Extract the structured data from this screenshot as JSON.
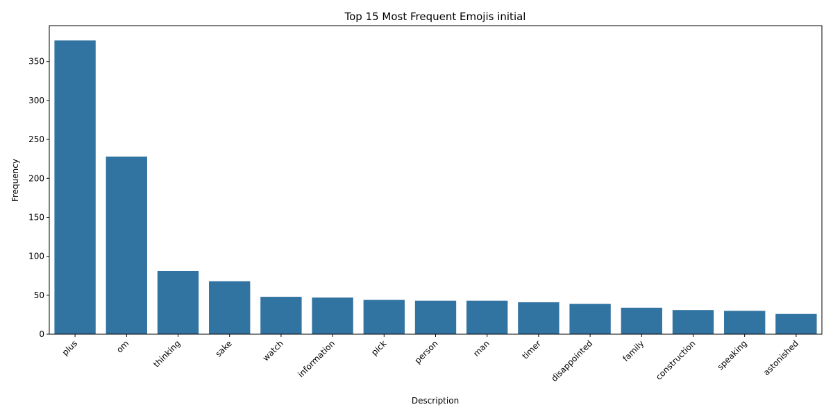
{
  "chart_data": {
    "type": "bar",
    "title": "Top 15 Most Frequent Emojis initial",
    "xlabel": "Description",
    "ylabel": "Frequency",
    "categories": [
      "plus",
      "om",
      "thinking",
      "sake",
      "watch",
      "information",
      "pick",
      "person",
      "man",
      "timer",
      "disappointed",
      "family",
      "construction",
      "speaking",
      "astonished"
    ],
    "values": [
      377,
      228,
      81,
      68,
      48,
      47,
      44,
      43,
      43,
      41,
      39,
      34,
      31,
      30,
      26
    ],
    "ylim": [
      0,
      396
    ],
    "yticks": [
      0,
      50,
      100,
      150,
      200,
      250,
      300,
      350
    ],
    "bar_color": "#3274a1",
    "grid": false,
    "legend": "none"
  }
}
